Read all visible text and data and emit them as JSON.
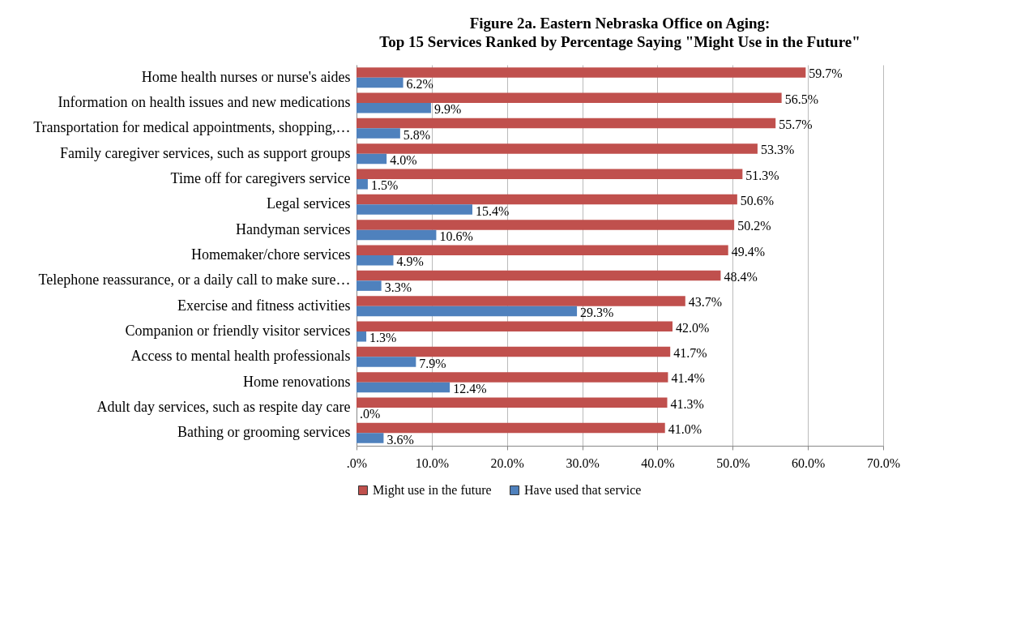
{
  "chart_data": {
    "type": "bar",
    "orientation": "horizontal",
    "title": "Figure 2a. Eastern Nebraska Office on Aging:",
    "subtitle": "Top 15 Services Ranked by Percentage Saying \"Might Use in the Future\"",
    "categories": [
      "Home health nurses or nurse's aides",
      "Information on health issues and new medications",
      "Transportation for medical appointments, shopping,…",
      "Family caregiver services, such as support groups",
      "Time off for caregivers service",
      "Legal services",
      "Handyman services",
      "Homemaker/chore services",
      "Telephone reassurance, or a daily call to make sure…",
      "Exercise and fitness activities",
      "Companion or friendly visitor services",
      "Access to mental health professionals",
      "Home renovations",
      "Adult day services, such as respite day care",
      "Bathing or grooming services"
    ],
    "series": [
      {
        "name": "Might use in the future",
        "color": "#c0504d",
        "values": [
          59.7,
          56.5,
          55.7,
          53.3,
          51.3,
          50.6,
          50.2,
          49.4,
          48.4,
          43.7,
          42.0,
          41.7,
          41.4,
          41.3,
          41.0
        ],
        "value_labels": [
          "59.7%",
          "56.5%",
          "55.7%",
          "53.3%",
          "51.3%",
          "50.6%",
          "50.2%",
          "49.4%",
          "48.4%",
          "43.7%",
          "42.0%",
          "41.7%",
          "41.4%",
          "41.3%",
          "41.0%"
        ]
      },
      {
        "name": "Have used that service",
        "color": "#4f81bd",
        "values": [
          6.2,
          9.9,
          5.8,
          4.0,
          1.5,
          15.4,
          10.6,
          4.9,
          3.3,
          29.3,
          1.3,
          7.9,
          12.4,
          0.0,
          3.6
        ],
        "value_labels": [
          "6.2%",
          "9.9%",
          "5.8%",
          "4.0%",
          "1.5%",
          "15.4%",
          "10.6%",
          "4.9%",
          "3.3%",
          "29.3%",
          "1.3%",
          "7.9%",
          "12.4%",
          ".0%",
          "3.6%"
        ]
      }
    ],
    "xlim": [
      0,
      70
    ],
    "xticks": [
      {
        "value": 0,
        "label": ".0%"
      },
      {
        "value": 10,
        "label": "10.0%"
      },
      {
        "value": 20,
        "label": "20.0%"
      },
      {
        "value": 30,
        "label": "30.0%"
      },
      {
        "value": 40,
        "label": "40.0%"
      },
      {
        "value": 50,
        "label": "50.0%"
      },
      {
        "value": 60,
        "label": "60.0%"
      },
      {
        "value": 70,
        "label": "70.0%"
      }
    ],
    "grid": "x",
    "legend": "bottom"
  }
}
